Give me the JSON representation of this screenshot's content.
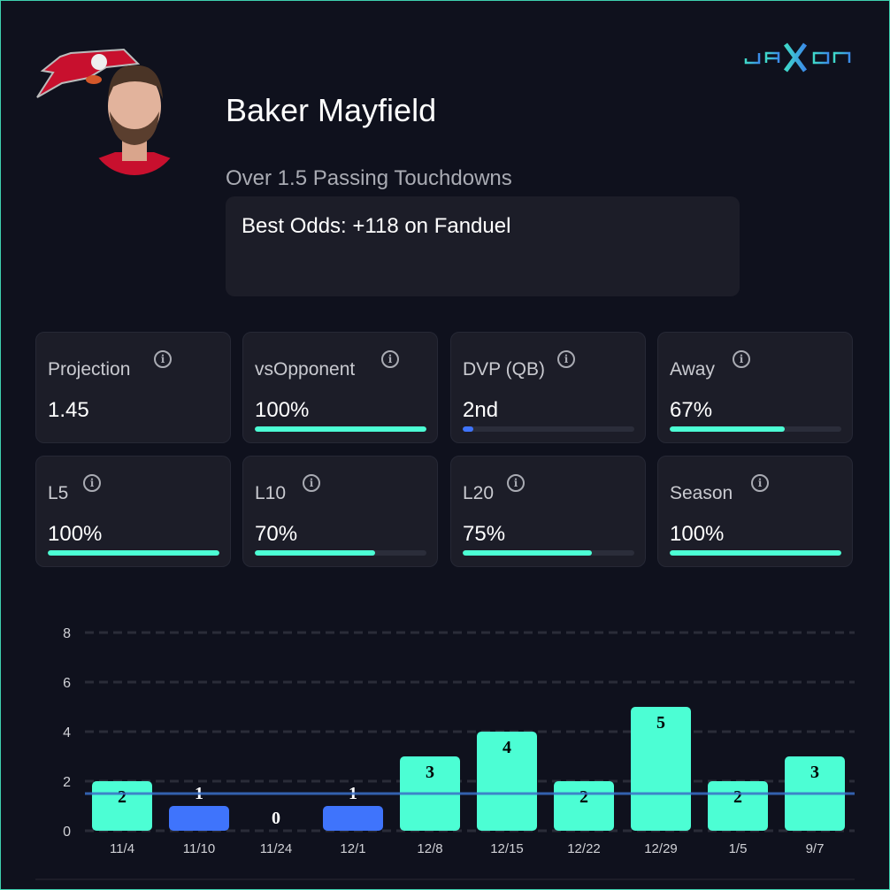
{
  "player": {
    "name": "Baker Mayfield",
    "prop": "Over 1.5 Passing Touchdowns",
    "best_odds": "Best Odds: +118 on Fanduel"
  },
  "brand": {
    "logo_text": "JAXON"
  },
  "colors": {
    "accent": "#4cfed4",
    "miss": "#3f74fc",
    "line": "#2f5aa8",
    "bg": "#0f111d",
    "card": "#1c1d28"
  },
  "stats": [
    {
      "label": "Projection",
      "value": "1.45",
      "progress": null
    },
    {
      "label": "vsOpponent",
      "value": "100%",
      "progress": 100
    },
    {
      "label": "DVP (QB)",
      "value": "2nd",
      "progress": 6
    },
    {
      "label": "Away",
      "value": "67%",
      "progress": 67
    },
    {
      "label": "L5",
      "value": "100%",
      "progress": 100
    },
    {
      "label": "L10",
      "value": "70%",
      "progress": 70
    },
    {
      "label": "L20",
      "value": "75%",
      "progress": 75
    },
    {
      "label": "Season",
      "value": "100%",
      "progress": 100
    }
  ],
  "chart_data": {
    "type": "bar",
    "categories": [
      "11/4",
      "11/10",
      "11/24",
      "12/1",
      "12/8",
      "12/15",
      "12/22",
      "12/29",
      "1/5",
      "9/7"
    ],
    "values": [
      2,
      1,
      0,
      1,
      3,
      4,
      2,
      5,
      2,
      3
    ],
    "threshold": 1.5,
    "ylim": [
      0,
      8
    ],
    "yticks": [
      0,
      2,
      4,
      6,
      8
    ],
    "grid": true
  }
}
